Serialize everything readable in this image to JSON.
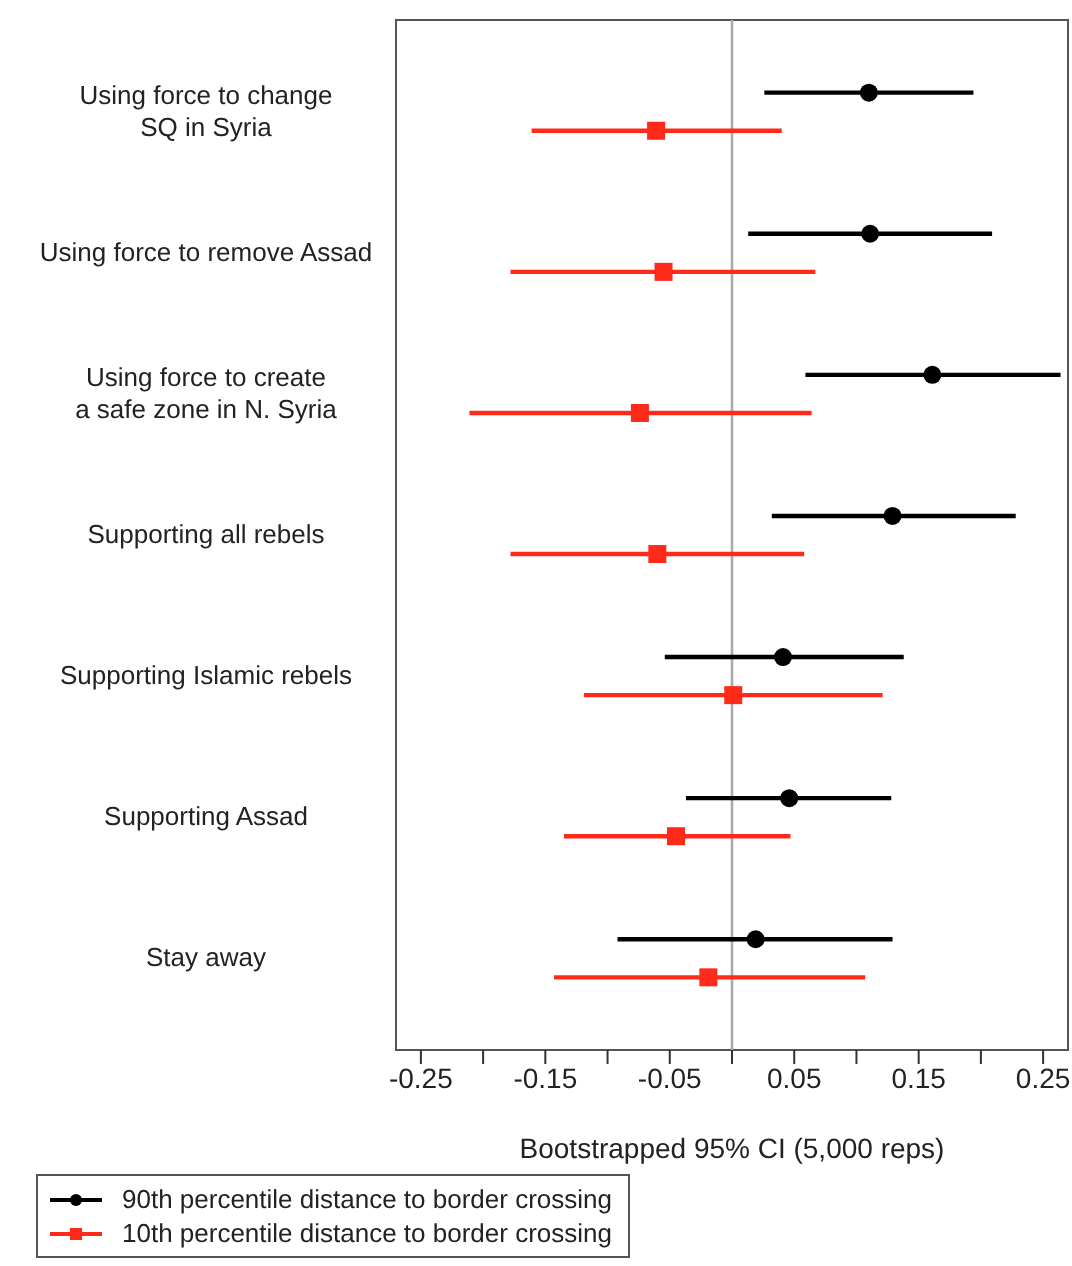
{
  "chart_data": {
    "type": "scatter",
    "orientation": "horizontal",
    "xlabel": "Bootstrapped 95% CI (5,000 reps)",
    "categories": [
      "Using force to change\nSQ in Syria",
      "Using force to remove Assad",
      "Using force to create\na safe zone in N. Syria",
      "Supporting all rebels",
      "Supporting Islamic rebels",
      "Supporting Assad",
      "Stay away"
    ],
    "series": [
      {
        "name": "90th percentile distance to border crossing",
        "color": "#000000",
        "marker": "circle",
        "values": [
          0.11,
          0.111,
          0.161,
          0.129,
          0.041,
          0.046,
          0.019
        ],
        "errors": [
          [
            0.026,
            0.194
          ],
          [
            0.013,
            0.209
          ],
          [
            0.059,
            0.264
          ],
          [
            0.032,
            0.228
          ],
          [
            -0.054,
            0.138
          ],
          [
            -0.037,
            0.128
          ],
          [
            -0.092,
            0.129
          ]
        ]
      },
      {
        "name": "10th percentile distance to border crossing",
        "color": "#ff2a1a",
        "marker": "square",
        "values": [
          -0.061,
          -0.055,
          -0.074,
          -0.06,
          0.001,
          -0.045,
          -0.019
        ],
        "errors": [
          [
            -0.161,
            0.04
          ],
          [
            -0.178,
            0.067
          ],
          [
            -0.211,
            0.064
          ],
          [
            -0.178,
            0.058
          ],
          [
            -0.119,
            0.121
          ],
          [
            -0.135,
            0.047
          ],
          [
            -0.143,
            0.107
          ]
        ]
      }
    ],
    "xlim": [
      -0.27,
      0.27
    ],
    "xticks": [
      -0.25,
      {
        "value": -0.2,
        "label": null
      },
      -0.15,
      {
        "value": -0.1,
        "label": null
      },
      -0.05,
      {
        "value": 0,
        "label": null
      },
      0.05,
      {
        "value": 0.1,
        "label": null
      },
      0.15,
      {
        "value": 0.2,
        "label": null
      },
      0.25
    ],
    "ref_lines": [
      {
        "axis": "x",
        "value": 0,
        "color": "#aaaaaa"
      }
    ],
    "legend": "bottom left"
  }
}
